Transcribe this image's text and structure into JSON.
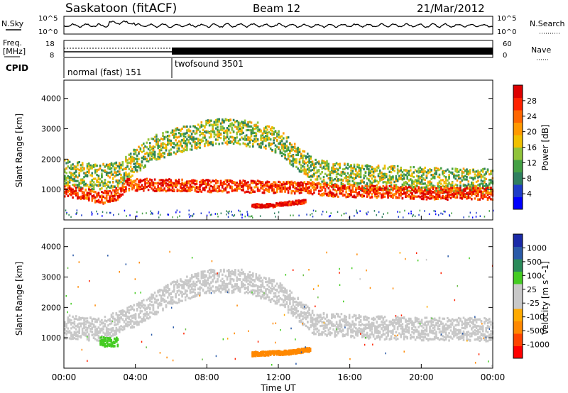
{
  "header": {
    "station": "Saskatoon (fitACF)",
    "beam": "Beam 12",
    "date": "21/Mar/2012"
  },
  "top_panels": {
    "nsky_label": "N.Sky",
    "nsearch_label": "N.Search",
    "noise_ticks_left": [
      "10^5",
      "10^0"
    ],
    "noise_ticks_right": [
      "10^5",
      "10^0"
    ],
    "freq_label_line1": "Freq.",
    "freq_label_line2": "[MHz]",
    "freq_ticks": [
      "18",
      "8"
    ],
    "nave_label": "Nave",
    "nave_ticks": [
      "60",
      "0"
    ],
    "cpid_label": "CPID",
    "cpid_segments": [
      {
        "name": "normal (fast) 151",
        "start_hour": 0,
        "end_hour": 6
      },
      {
        "name": "twofsound 3501",
        "start_hour": 6,
        "end_hour": 24
      }
    ]
  },
  "colorbars": {
    "power": {
      "label": "Power [dB]",
      "ticks": [
        "28",
        "24",
        "20",
        "16",
        "12",
        "8",
        "4"
      ],
      "colors": [
        "#0000ff",
        "#1e3cc8",
        "#2f7f5f",
        "#44a044",
        "#90c33a",
        "#f0c000",
        "#ff9900",
        "#ff6600",
        "#ff2200",
        "#dd0000"
      ]
    },
    "velocity": {
      "label": "Velocity [m s^-1]",
      "ticks": [
        "1000",
        "500",
        "100",
        "25",
        "-25",
        "-100",
        "-500",
        "-1000"
      ],
      "colors": [
        "#ff0000",
        "#ff4400",
        "#ff8800",
        "#ffaa00",
        "#c8c8c8",
        "#c8c8c8",
        "#44cc22",
        "#2a8a5a",
        "#2a5aa8",
        "#1a2aa8"
      ]
    }
  },
  "chart_data": [
    {
      "type": "heatmap",
      "panel": "power",
      "ylabel": "Slant Range [km]",
      "xlim_hours": [
        0,
        24
      ],
      "ylim": [
        0,
        4600
      ],
      "yticks": [
        "4000",
        "3000",
        "2000",
        "1000"
      ],
      "bands": [
        {
          "name": "ionospheric scatter",
          "points": [
            [
              0.0,
              1600
            ],
            [
              1.0,
              1500
            ],
            [
              2.0,
              1450
            ],
            [
              3.0,
              1550
            ],
            [
              4.0,
              2000
            ],
            [
              5.0,
              2400
            ],
            [
              6.0,
              2600
            ],
            [
              7.0,
              2750
            ],
            [
              8.0,
              2900
            ],
            [
              9.0,
              2950
            ],
            [
              10.0,
              2900
            ],
            [
              11.0,
              2800
            ],
            [
              12.0,
              2600
            ],
            [
              13.0,
              2100
            ],
            [
              14.0,
              1600
            ],
            [
              16.0,
              1450
            ],
            [
              18.0,
              1400
            ],
            [
              20.0,
              1350
            ],
            [
              22.0,
              1300
            ],
            [
              24.0,
              1300
            ]
          ],
          "value_db": 12
        },
        {
          "name": "strong near range",
          "points": [
            [
              0.0,
              1000
            ],
            [
              1.0,
              900
            ],
            [
              2.0,
              750
            ],
            [
              3.0,
              900
            ],
            [
              3.5,
              1200
            ],
            [
              13.5,
              1100
            ],
            [
              15.0,
              1000
            ],
            [
              18.0,
              950
            ],
            [
              21.0,
              900
            ],
            [
              24.0,
              900
            ]
          ],
          "value_db": 24
        },
        {
          "name": "afternoon echo",
          "points": [
            [
              10.5,
              500
            ],
            [
              11.5,
              500
            ],
            [
              12.5,
              580
            ],
            [
              13.5,
              640
            ]
          ],
          "value_db": 28
        }
      ]
    },
    {
      "type": "heatmap",
      "panel": "velocity",
      "ylabel": "Slant Range [km]",
      "xlim_hours": [
        0,
        24
      ],
      "ylim": [
        0,
        4600
      ],
      "yticks": [
        "4000",
        "3000",
        "2000",
        "1000"
      ],
      "xticks": [
        "00:00",
        "04:00",
        "08:00",
        "12:00",
        "16:00",
        "20:00",
        "00:00"
      ],
      "xlabel": "Time UT",
      "bands": [
        {
          "name": "ground scatter",
          "points": [
            [
              0.0,
              1400
            ],
            [
              2.0,
              1300
            ],
            [
              4.0,
              1800
            ],
            [
              6.0,
              2500
            ],
            [
              8.0,
              2900
            ],
            [
              10.0,
              2900
            ],
            [
              12.0,
              2500
            ],
            [
              13.0,
              2000
            ],
            [
              14.0,
              1500
            ],
            [
              18.0,
              1350
            ],
            [
              24.0,
              1300
            ]
          ],
          "value_ms": 0
        },
        {
          "name": "low velocity patch",
          "points": [
            [
              2.0,
              900
            ],
            [
              3.0,
              900
            ]
          ],
          "value_ms": 300
        },
        {
          "name": "afternoon negative",
          "points": [
            [
              10.5,
              500
            ],
            [
              12.5,
              550
            ],
            [
              13.8,
              650
            ]
          ],
          "value_ms": -150
        }
      ]
    }
  ]
}
